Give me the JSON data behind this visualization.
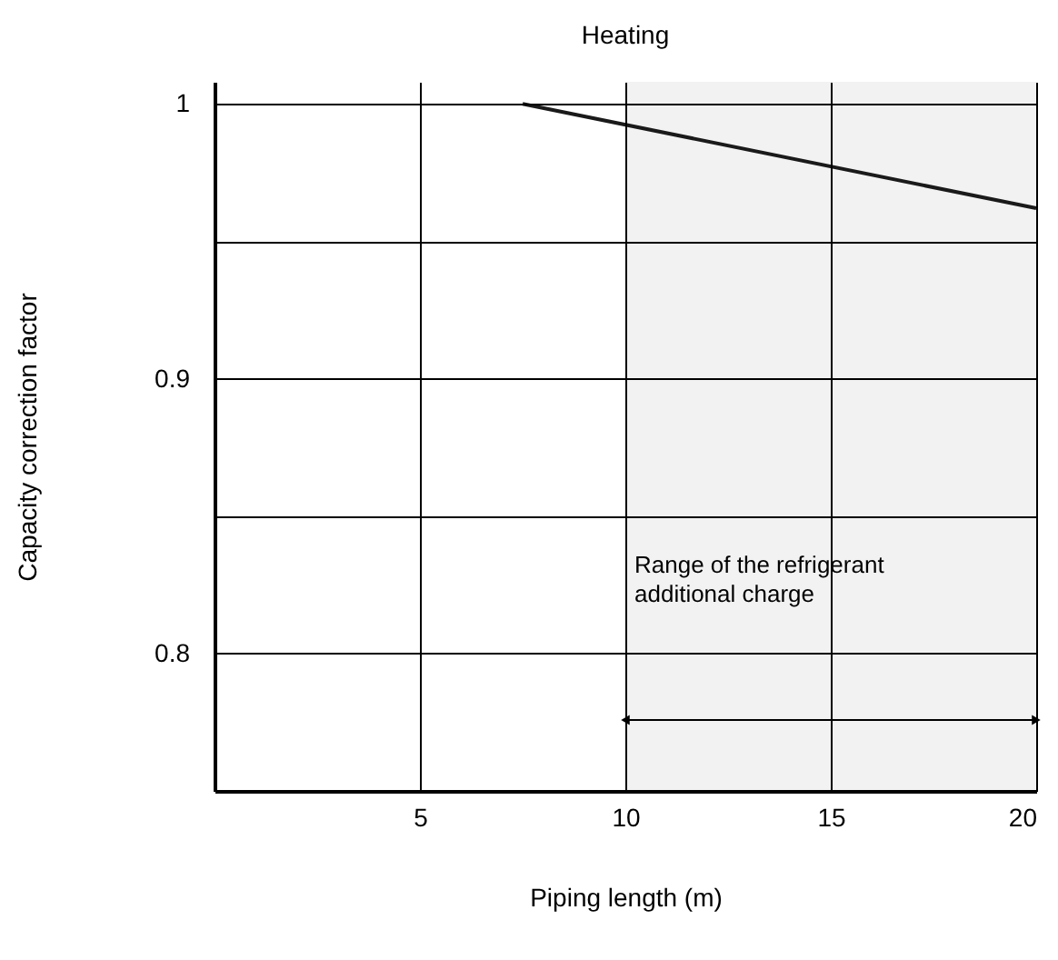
{
  "chart_data": {
    "type": "line",
    "title": "Heating",
    "xlabel": "Piping length (m)",
    "ylabel": "Capacity correction factor",
    "x": [
      7.5,
      20
    ],
    "series": [
      {
        "color": "#1a1a1a",
        "values": [
          1.0,
          0.962
        ]
      }
    ],
    "xlim": [
      0,
      20
    ],
    "xticks": [
      5,
      10,
      15,
      20
    ],
    "ylim": [
      0.75,
      1.008
    ],
    "yticks": [
      {
        "value": 0.75,
        "label": null
      },
      {
        "value": 0.8,
        "label": "0.8"
      },
      {
        "value": 0.85,
        "label": null
      },
      {
        "value": 0.9,
        "label": "0.9"
      },
      {
        "value": 0.95,
        "label": null
      },
      {
        "value": 1,
        "label": "1"
      }
    ],
    "grid": true,
    "marker": "none",
    "line_style": "solid",
    "bands": [
      {
        "axis": "x",
        "from": 10,
        "to": 20,
        "color": "#f2f2f2",
        "label": "Range of the refrigerant additional charge"
      }
    ]
  }
}
